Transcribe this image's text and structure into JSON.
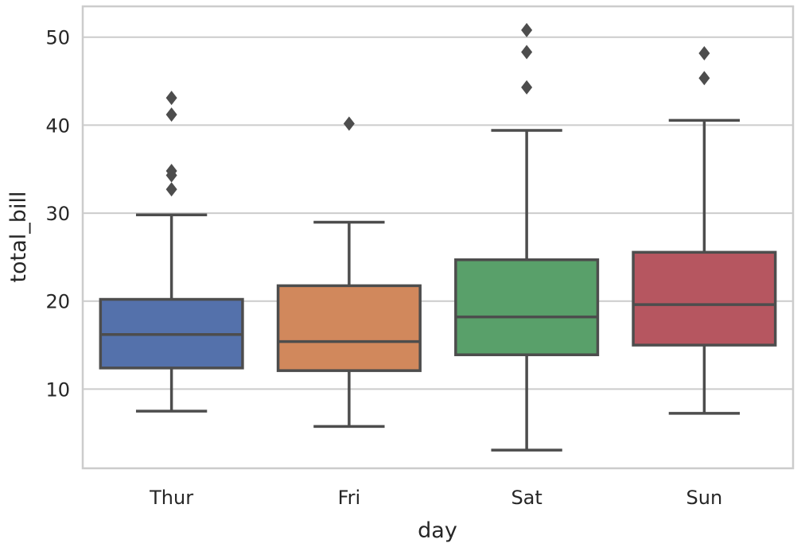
{
  "chart_data": {
    "type": "box",
    "title": "",
    "xlabel": "day",
    "ylabel": "total_bill",
    "categories": [
      "Thur",
      "Fri",
      "Sat",
      "Sun"
    ],
    "ylim": [
      1.0,
      53.5
    ],
    "yticks": [
      10,
      20,
      30,
      40,
      50
    ],
    "grid": true,
    "colors": [
      "#5471ab",
      "#d1885c",
      "#59a06a",
      "#b65660"
    ],
    "edge_color": "#4d4d4d",
    "grid_color": "#cccccc",
    "boxes": [
      {
        "category": "Thur",
        "whisker_low": 7.5,
        "q1": 12.4,
        "median": 16.2,
        "q3": 20.2,
        "whisker_high": 29.8,
        "outliers": [
          32.7,
          34.3,
          34.8,
          41.2,
          43.1
        ]
      },
      {
        "category": "Fri",
        "whisker_low": 5.75,
        "q1": 12.1,
        "median": 15.4,
        "q3": 21.75,
        "whisker_high": 28.97,
        "outliers": [
          40.17
        ]
      },
      {
        "category": "Sat",
        "whisker_low": 3.07,
        "q1": 13.9,
        "median": 18.2,
        "q3": 24.7,
        "whisker_high": 39.4,
        "outliers": [
          44.3,
          48.3,
          50.8
        ]
      },
      {
        "category": "Sun",
        "whisker_low": 7.25,
        "q1": 15.0,
        "median": 19.6,
        "q3": 25.55,
        "whisker_high": 40.55,
        "outliers": [
          45.35,
          48.17
        ]
      }
    ]
  }
}
